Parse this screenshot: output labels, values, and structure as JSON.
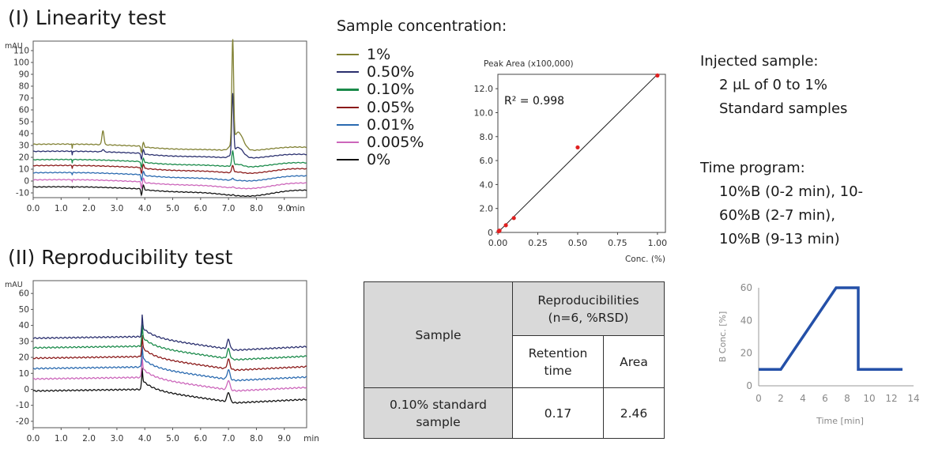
{
  "titles": {
    "linearity": "(I) Linearity test",
    "reproducibility": "(II) Reproducibility test"
  },
  "legend": {
    "heading": "Sample concentration:",
    "items": [
      {
        "label": "1%",
        "color": "#808032"
      },
      {
        "label": "0.50%",
        "color": "#2a2f6e"
      },
      {
        "label": "0.10%",
        "color": "#1a8a4a"
      },
      {
        "label": "0.05%",
        "color": "#8b1a1a"
      },
      {
        "label": "0.01%",
        "color": "#2a6ab0"
      },
      {
        "label": "0.005%",
        "color": "#cc66bb"
      },
      {
        "label": "0%",
        "color": "#111111"
      }
    ]
  },
  "injected": {
    "heading": "Injected sample:",
    "line1": "2 μL of 0 to 1%",
    "line2": "Standard samples"
  },
  "time_program": {
    "heading": "Time program:",
    "line1": "10%B (0-2 min), 10-",
    "line2": "60%B (2-7 min),",
    "line3": "10%B (9-13 min)"
  },
  "table": {
    "sample_header": "Sample",
    "group_header_1": "Reproducibilities",
    "group_header_2": "(n=6, %RSD)",
    "rt_header_1": "Retention",
    "rt_header_2": "time",
    "area_header": "Area",
    "row_label_1": "0.10% standard",
    "row_label_2": "sample",
    "rt_value": "0.17",
    "area_value": "2.46"
  },
  "chart_data": [
    {
      "type": "line",
      "unit_label": "mAU",
      "xlabel": "min",
      "xlim": [
        0,
        9.8
      ],
      "ylim": [
        -14,
        118
      ],
      "xticks": [
        "0.0",
        "1.0",
        "2.0",
        "3.0",
        "4.0",
        "5.0",
        "6.0",
        "7.0",
        "8.0",
        "9.0"
      ],
      "yticks": [
        -10,
        0,
        10,
        20,
        30,
        40,
        50,
        60,
        70,
        80,
        90,
        100,
        110
      ],
      "series": [
        {
          "name": "1%",
          "color": "#808032",
          "baseline": 31,
          "peak": 86,
          "early_peak": 12
        },
        {
          "name": "0.50%",
          "color": "#2a2f6e",
          "baseline": 25,
          "peak": 50,
          "early_peak": 2
        },
        {
          "name": "0.10%",
          "color": "#1a8a4a",
          "baseline": 18,
          "peak": 12,
          "early_peak": 0
        },
        {
          "name": "0.05%",
          "color": "#8b1a1a",
          "baseline": 13,
          "peak": 6,
          "early_peak": 0
        },
        {
          "name": "0.01%",
          "color": "#2a6ab0",
          "baseline": 7,
          "peak": 2,
          "early_peak": 0
        },
        {
          "name": "0.005%",
          "color": "#cc66bb",
          "baseline": 1,
          "peak": 1,
          "early_peak": 0
        },
        {
          "name": "0%",
          "color": "#111111",
          "baseline": -5,
          "peak": 0.5,
          "early_peak": 0
        }
      ]
    },
    {
      "type": "scatter",
      "title": "Peak Area (x100,000)",
      "xlabel": "Conc. (%)",
      "xlim": [
        0,
        1.05
      ],
      "ylim": [
        0,
        13.2
      ],
      "xticks": [
        "0.00",
        "0.25",
        "0.50",
        "0.75",
        "1.00"
      ],
      "yticks": [
        "0",
        "2.0",
        "4.0",
        "6.0",
        "8.0",
        "10.0",
        "12.0"
      ],
      "annotation": "R² = 0.998",
      "points": [
        {
          "x": 0.005,
          "y": 0.1
        },
        {
          "x": 0.01,
          "y": 0.15
        },
        {
          "x": 0.05,
          "y": 0.6
        },
        {
          "x": 0.1,
          "y": 1.2
        },
        {
          "x": 0.5,
          "y": 7.1
        },
        {
          "x": 1.0,
          "y": 13.1
        }
      ],
      "fit_line": [
        [
          0,
          -0.2
        ],
        [
          1.0,
          13.2
        ]
      ],
      "point_color": "#e02020"
    },
    {
      "type": "line",
      "unit_label": "mAU",
      "xlabel": "min",
      "xlim": [
        0,
        9.8
      ],
      "ylim": [
        -24,
        68
      ],
      "xticks": [
        "0.0",
        "1.0",
        "2.0",
        "3.0",
        "4.0",
        "5.0",
        "6.0",
        "7.0",
        "8.0",
        "9.0"
      ],
      "yticks": [
        -20,
        -10,
        0,
        10,
        20,
        30,
        40,
        50,
        60
      ],
      "series": [
        {
          "color": "#2a2f6e",
          "baseline": 32
        },
        {
          "color": "#1a8a4a",
          "baseline": 26
        },
        {
          "color": "#8b1a1a",
          "baseline": 19.5
        },
        {
          "color": "#2a6ab0",
          "baseline": 13
        },
        {
          "color": "#cc66bb",
          "baseline": 6.5
        },
        {
          "color": "#111111",
          "baseline": -1
        }
      ]
    },
    {
      "type": "line",
      "xlabel": "Time [min]",
      "ylabel": "B Conc. [%]",
      "xlim": [
        0,
        14
      ],
      "ylim": [
        0,
        60
      ],
      "xticks": [
        0,
        2,
        4,
        6,
        8,
        10,
        12,
        14
      ],
      "yticks": [
        0,
        20,
        40,
        60
      ],
      "color": "#2450a8",
      "points": [
        [
          0,
          10
        ],
        [
          2,
          10
        ],
        [
          7,
          60
        ],
        [
          9,
          60
        ],
        [
          9,
          10
        ],
        [
          13,
          10
        ]
      ]
    }
  ]
}
